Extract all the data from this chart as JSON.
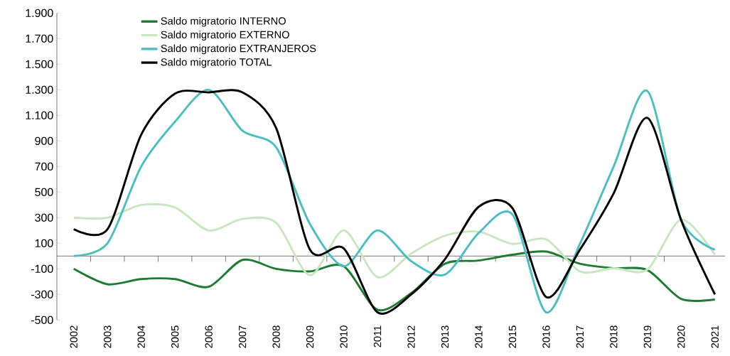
{
  "chart_data": {
    "type": "line",
    "categories": [
      "2002",
      "2003",
      "2004",
      "2005",
      "2006",
      "2007",
      "2008",
      "2009",
      "2010",
      "2011",
      "2012",
      "2013",
      "2014",
      "2015",
      "2016",
      "2017",
      "2018",
      "2019",
      "2020",
      "2021"
    ],
    "series": [
      {
        "name": "Saldo migratorio INTERNO",
        "color": "#1e7b34",
        "values": [
          -100,
          -220,
          -180,
          -180,
          -240,
          -30,
          -100,
          -120,
          -80,
          -420,
          -290,
          -60,
          -35,
          10,
          35,
          -60,
          -95,
          -110,
          -335,
          -340
        ]
      },
      {
        "name": "Saldo migratorio EXTERNO",
        "color": "#c8e6c0",
        "values": [
          300,
          300,
          400,
          380,
          200,
          290,
          260,
          -150,
          200,
          -165,
          20,
          160,
          190,
          95,
          130,
          -120,
          -95,
          -105,
          285,
          10
        ]
      },
      {
        "name": "Saldo migratorio EXTRANJEROS",
        "color": "#4bbfc0",
        "values": [
          0,
          100,
          700,
          1050,
          1300,
          980,
          850,
          250,
          -80,
          200,
          -40,
          -145,
          180,
          325,
          -440,
          95,
          700,
          1290,
          285,
          50
        ]
      },
      {
        "name": "Saldo migratorio TOTAL",
        "color": "#000000",
        "values": [
          210,
          210,
          950,
          1270,
          1280,
          1280,
          1000,
          50,
          60,
          -440,
          -300,
          -25,
          385,
          375,
          -320,
          50,
          490,
          1080,
          280,
          -300
        ]
      }
    ],
    "ylim": [
      -500,
      1900
    ],
    "yticks": [
      {
        "value": -500,
        "label": "-500"
      },
      {
        "value": -300,
        "label": "-300"
      },
      {
        "value": -100,
        "label": "-100"
      },
      {
        "value": 100,
        "label": "100"
      },
      {
        "value": 300,
        "label": "300"
      },
      {
        "value": 500,
        "label": "500"
      },
      {
        "value": 700,
        "label": "700"
      },
      {
        "value": 900,
        "label": "900"
      },
      {
        "value": 1100,
        "label": "1.100"
      },
      {
        "value": 1300,
        "label": "1.300"
      },
      {
        "value": 1500,
        "label": "1.500"
      },
      {
        "value": 1700,
        "label": "1.700"
      },
      {
        "value": 1900,
        "label": "1.900"
      }
    ],
    "legend": "top",
    "grid": false,
    "marker": "none",
    "line_style": "solid"
  }
}
